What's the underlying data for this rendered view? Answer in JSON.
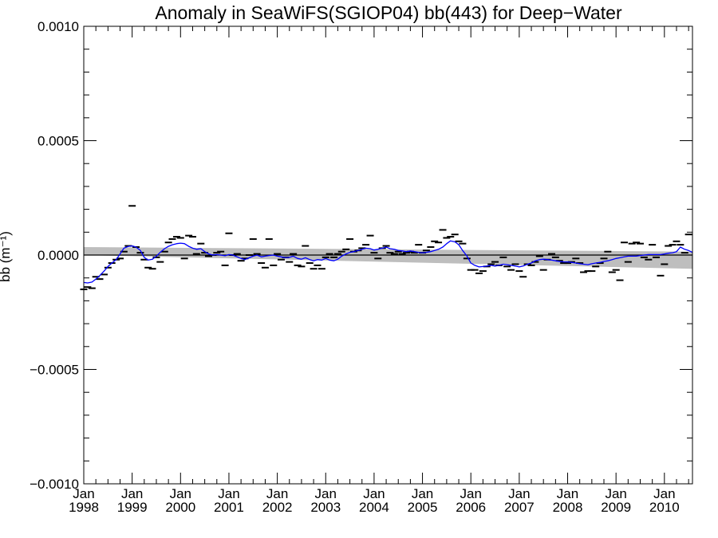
{
  "chart_data": {
    "type": "line",
    "title": "Anomaly in SeaWiFS(SGIOP04) bb(443) for Deep−Water",
    "ylabel": "bb (m⁻¹)",
    "xlabel": "",
    "xlim": [
      1998.0,
      2010.58
    ],
    "ylim": [
      -0.001,
      0.001
    ],
    "y_ticks": [
      {
        "value": 0.001,
        "label": "0.0010"
      },
      {
        "value": 0.0005,
        "label": "0.0005"
      },
      {
        "value": 0.0,
        "label": "0.0000"
      },
      {
        "value": -0.0005,
        "label": "−0.0005"
      },
      {
        "value": -0.001,
        "label": "−0.0010"
      }
    ],
    "x_ticks": [
      {
        "value": 1998,
        "month": "Jan",
        "year": "1998"
      },
      {
        "value": 1999,
        "month": "Jan",
        "year": "1999"
      },
      {
        "value": 2000,
        "month": "Jan",
        "year": "2000"
      },
      {
        "value": 2001,
        "month": "Jan",
        "year": "2001"
      },
      {
        "value": 2002,
        "month": "Jan",
        "year": "2002"
      },
      {
        "value": 2003,
        "month": "Jan",
        "year": "2003"
      },
      {
        "value": 2004,
        "month": "Jan",
        "year": "2004"
      },
      {
        "value": 2005,
        "month": "Jan",
        "year": "2005"
      },
      {
        "value": 2006,
        "month": "Jan",
        "year": "2006"
      },
      {
        "value": 2007,
        "month": "Jan",
        "year": "2007"
      },
      {
        "value": 2008,
        "month": "Jan",
        "year": "2008"
      },
      {
        "value": 2009,
        "month": "Jan",
        "year": "2009"
      },
      {
        "value": 2010,
        "month": "Jan",
        "year": "2010"
      }
    ],
    "zero_line": 0.0,
    "colors": {
      "monthly_marks": "#000000",
      "smoothed_line": "#0000ff",
      "trend_band": "#bebebe",
      "trend_line": "#000000"
    },
    "trend_band": {
      "x": [
        1998.0,
        2010.58
      ],
      "upper": [
        3.5e-05,
        1.5e-05
      ],
      "lower": [
        0.0,
        -6e-05
      ]
    },
    "trend_line": {
      "x": [
        1998.0,
        2010.58
      ],
      "y": [
        0.0,
        0.0
      ]
    },
    "series": [
      {
        "style": "dash-marks",
        "x": [
          1998.0,
          1998.08,
          1998.17,
          1998.25,
          1998.33,
          1998.42,
          1998.5,
          1998.58,
          1998.67,
          1998.75,
          1998.83,
          1998.92,
          1999.0,
          1999.08,
          1999.17,
          1999.25,
          1999.33,
          1999.42,
          1999.5,
          1999.58,
          1999.67,
          1999.75,
          1999.83,
          1999.92,
          2000.0,
          2000.08,
          2000.17,
          2000.25,
          2000.33,
          2000.42,
          2000.5,
          2000.58,
          2000.67,
          2000.75,
          2000.83,
          2000.92,
          2001.0,
          2001.08,
          2001.17,
          2001.25,
          2001.33,
          2001.42,
          2001.5,
          2001.58,
          2001.67,
          2001.75,
          2001.83,
          2001.92,
          2002.0,
          2002.08,
          2002.17,
          2002.25,
          2002.33,
          2002.42,
          2002.5,
          2002.58,
          2002.67,
          2002.75,
          2002.83,
          2002.92,
          2003.0,
          2003.08,
          2003.17,
          2003.25,
          2003.33,
          2003.42,
          2003.5,
          2003.58,
          2003.67,
          2003.75,
          2003.83,
          2003.92,
          2004.0,
          2004.08,
          2004.17,
          2004.25,
          2004.33,
          2004.42,
          2004.5,
          2004.58,
          2004.67,
          2004.75,
          2004.83,
          2004.92,
          2005.0,
          2005.08,
          2005.17,
          2005.25,
          2005.33,
          2005.42,
          2005.5,
          2005.58,
          2005.67,
          2005.75,
          2005.83,
          2005.92,
          2006.0,
          2006.08,
          2006.17,
          2006.25,
          2006.33,
          2006.42,
          2006.5,
          2006.58,
          2006.67,
          2006.75,
          2006.83,
          2006.92,
          2007.0,
          2007.08,
          2007.17,
          2007.25,
          2007.33,
          2007.42,
          2007.5,
          2007.58,
          2007.67,
          2007.75,
          2007.83,
          2007.92,
          2008.0,
          2008.08,
          2008.17,
          2008.25,
          2008.33,
          2008.42,
          2008.5,
          2008.58,
          2008.67,
          2008.75,
          2008.83,
          2008.92,
          2009.0,
          2009.08,
          2009.17,
          2009.25,
          2009.33,
          2009.42,
          2009.5,
          2009.58,
          2009.67,
          2009.75,
          2009.83,
          2009.92,
          2010.0,
          2010.08,
          2010.17,
          2010.25,
          2010.33,
          2010.42,
          2010.5
        ],
        "y": [
          -0.00015,
          -0.00014,
          -0.000145,
          -9.5e-05,
          -0.000105,
          -8.5e-05,
          -5.5e-05,
          -3.5e-05,
          -2e-05,
          -1.5e-05,
          1.5e-05,
          4e-05,
          0.000215,
          3.5e-05,
          1e-05,
          -2e-05,
          -5.5e-05,
          -6e-05,
          -1e-05,
          -3e-05,
          1.5e-05,
          5.5e-05,
          7e-05,
          8e-05,
          7.5e-05,
          -1.5e-05,
          8.5e-05,
          8e-05,
          5e-06,
          5e-05,
          1e-05,
          -5e-06,
          0.0,
          1e-05,
          1.5e-05,
          -4.5e-05,
          9.5e-05,
          0.0,
          5e-06,
          -2.5e-05,
          -1.5e-05,
          0.0,
          7e-05,
          5e-06,
          -3.5e-05,
          -5.5e-05,
          7e-05,
          -4.5e-05,
          5e-06,
          -2e-05,
          -1e-05,
          -3e-05,
          5e-06,
          -4.5e-05,
          -5e-05,
          4e-05,
          -3.5e-05,
          -6e-05,
          -4.5e-05,
          -6e-05,
          -1e-05,
          5e-06,
          -1e-05,
          5e-06,
          1.5e-05,
          2.5e-05,
          7e-05,
          1.5e-05,
          2e-05,
          3e-05,
          4.5e-05,
          8.5e-05,
          1e-05,
          -1.5e-05,
          3e-05,
          4e-05,
          1e-05,
          5e-06,
          1.5e-05,
          5e-06,
          1e-05,
          1.5e-05,
          1e-05,
          4.5e-05,
          1e-05,
          2e-05,
          3.5e-05,
          6e-05,
          5.5e-05,
          0.00011,
          7.5e-05,
          8e-05,
          9e-05,
          6e-05,
          5e-05,
          -1.5e-05,
          -6.5e-05,
          -6.5e-05,
          -8e-05,
          -7e-05,
          -5e-05,
          -4e-05,
          -3e-05,
          -4.5e-05,
          -1e-05,
          -5e-05,
          -6.5e-05,
          -4e-05,
          -7e-05,
          -9.5e-05,
          -4e-05,
          -4.5e-05,
          -3e-05,
          -5e-06,
          -6.5e-05,
          -2e-05,
          5e-06,
          -1e-05,
          -2.5e-05,
          -3.5e-05,
          -3.5e-05,
          -3e-05,
          -1.5e-05,
          -3.5e-05,
          -7.5e-05,
          -7e-05,
          -7e-05,
          -5e-05,
          -3.5e-05,
          -1.5e-05,
          1.5e-05,
          -7.5e-05,
          -6.5e-05,
          -0.00011,
          5.5e-05,
          -3e-05,
          5e-05,
          5.5e-05,
          5e-05,
          -1e-05,
          -2e-05,
          4.5e-05,
          -1e-05,
          -9e-05,
          -4e-05,
          4e-05,
          4.5e-05,
          6e-05,
          4.5e-05,
          1e-05,
          9e-05
        ]
      },
      {
        "style": "line",
        "x": [
          1998.0,
          1998.08,
          1998.17,
          1998.25,
          1998.33,
          1998.42,
          1998.5,
          1998.58,
          1998.67,
          1998.75,
          1998.83,
          1998.92,
          1999.0,
          1999.08,
          1999.17,
          1999.25,
          1999.33,
          1999.42,
          1999.5,
          1999.58,
          1999.67,
          1999.75,
          1999.83,
          1999.92,
          2000.0,
          2000.08,
          2000.17,
          2000.25,
          2000.33,
          2000.42,
          2000.5,
          2000.58,
          2000.67,
          2000.75,
          2000.83,
          2000.92,
          2001.0,
          2001.08,
          2001.17,
          2001.25,
          2001.33,
          2001.42,
          2001.5,
          2001.58,
          2001.67,
          2001.75,
          2001.83,
          2001.92,
          2002.0,
          2002.08,
          2002.17,
          2002.25,
          2002.33,
          2002.42,
          2002.5,
          2002.58,
          2002.67,
          2002.75,
          2002.83,
          2002.92,
          2003.0,
          2003.08,
          2003.17,
          2003.25,
          2003.33,
          2003.42,
          2003.5,
          2003.58,
          2003.67,
          2003.75,
          2003.83,
          2003.92,
          2004.0,
          2004.08,
          2004.17,
          2004.25,
          2004.33,
          2004.42,
          2004.5,
          2004.58,
          2004.67,
          2004.75,
          2004.83,
          2004.92,
          2005.0,
          2005.08,
          2005.17,
          2005.25,
          2005.33,
          2005.42,
          2005.5,
          2005.58,
          2005.67,
          2005.75,
          2005.83,
          2005.92,
          2006.0,
          2006.08,
          2006.17,
          2006.25,
          2006.33,
          2006.42,
          2006.5,
          2006.58,
          2006.67,
          2006.75,
          2006.83,
          2006.92,
          2007.0,
          2007.08,
          2007.17,
          2007.25,
          2007.33,
          2007.42,
          2007.5,
          2007.58,
          2007.67,
          2007.75,
          2007.83,
          2007.92,
          2008.0,
          2008.08,
          2008.17,
          2008.25,
          2008.33,
          2008.42,
          2008.5,
          2008.58,
          2008.67,
          2008.75,
          2008.83,
          2008.92,
          2009.0,
          2009.08,
          2009.17,
          2009.25,
          2009.33,
          2009.42,
          2009.5,
          2009.58,
          2009.67,
          2009.75,
          2009.83,
          2009.92,
          2010.0,
          2010.08,
          2010.17,
          2010.25,
          2010.33,
          2010.42,
          2010.5,
          2010.58
        ],
        "y": [
          -0.00012,
          -0.000122,
          -0.000118,
          -0.000105,
          -9e-05,
          -7e-05,
          -5e-05,
          -3.5e-05,
          -2e-05,
          5e-06,
          3e-05,
          3.8e-05,
          4e-05,
          3.5e-05,
          2e-05,
          -1e-05,
          -2.2e-05,
          -1.8e-05,
          -5e-06,
          1.2e-05,
          2.8e-05,
          3.8e-05,
          4.5e-05,
          5e-05,
          5.2e-05,
          5e-05,
          3.8e-05,
          3e-05,
          2.5e-05,
          2.8e-05,
          1.5e-05,
          5e-06,
          0.0,
          2e-06,
          0.0,
          -3e-06,
          2e-06,
          0.0,
          -8e-06,
          -1.5e-05,
          -2e-05,
          -1.2e-05,
          -5e-06,
          0.0,
          -8e-06,
          -5e-06,
          -2e-06,
          0.0,
          -5e-06,
          -8e-06,
          -1.2e-05,
          -1e-05,
          -5e-06,
          -1.5e-05,
          -1.8e-05,
          -1.2e-05,
          -2e-05,
          -2.5e-05,
          -2e-05,
          -2.2e-05,
          -1.5e-05,
          -2.2e-05,
          -2.5e-05,
          -1.8e-05,
          -5e-06,
          5e-06,
          1.2e-05,
          1.5e-05,
          2e-05,
          2.5e-05,
          3e-05,
          2.8e-05,
          2.2e-05,
          2.5e-05,
          3e-05,
          3.5e-05,
          2.8e-05,
          2.5e-05,
          2e-05,
          1.8e-05,
          1.5e-05,
          1.8e-05,
          1.5e-05,
          1.2e-05,
          1e-05,
          1.2e-05,
          1.5e-05,
          2e-05,
          2.5e-05,
          3.5e-05,
          5e-05,
          6.2e-05,
          5.8e-05,
          4.5e-05,
          2e-05,
          -5e-06,
          -3.5e-05,
          -4.5e-05,
          -5.2e-05,
          -5e-05,
          -4.8e-05,
          -4.5e-05,
          -4.8e-05,
          -4.5e-05,
          -4e-05,
          -4.2e-05,
          -4.5e-05,
          -4.8e-05,
          -5.2e-05,
          -4.8e-05,
          -4e-05,
          -3.5e-05,
          -2.5e-05,
          -2e-05,
          -1.8e-05,
          -2e-05,
          -2.2e-05,
          -2.5e-05,
          -2.8e-05,
          -3e-05,
          -3e-05,
          -3.2e-05,
          -3.5e-05,
          -3.8e-05,
          -4e-05,
          -4.2e-05,
          -3.8e-05,
          -3.5e-05,
          -3.2e-05,
          -2.8e-05,
          -2.5e-05,
          -2e-05,
          -1.5e-05,
          -1.2e-05,
          -8e-06,
          -5e-06,
          -5e-06,
          -5e-06,
          -2e-06,
          0.0,
          2e-06,
          2e-06,
          2e-06,
          2e-06,
          5e-06,
          8e-06,
          1e-05,
          1.5e-05,
          3.5e-05,
          2.5e-05,
          2e-05,
          1.2e-05
        ]
      }
    ]
  }
}
